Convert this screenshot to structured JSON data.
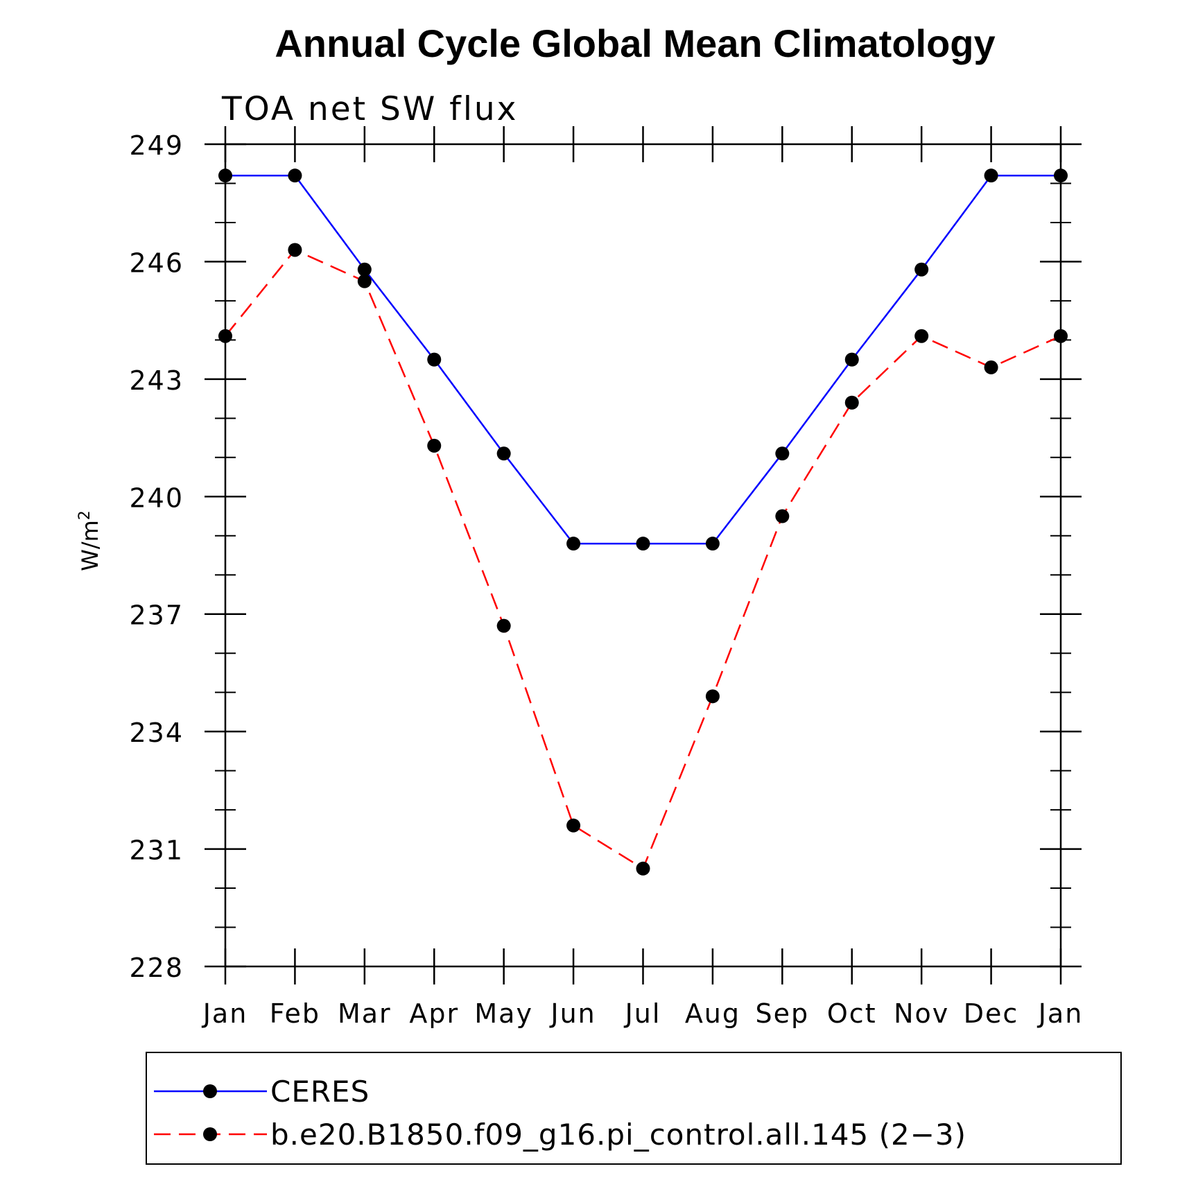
{
  "chart_data": {
    "type": "line",
    "title": "Annual Cycle Global Mean Climatology",
    "subtitle": "TOA net SW flux",
    "ylabel": "W/m",
    "ylabel_superscript": "2",
    "ylim": [
      228,
      249
    ],
    "yticks": [
      "228",
      "231",
      "234",
      "237",
      "240",
      "243",
      "246",
      "249"
    ],
    "categories": [
      "Jan",
      "Feb",
      "Mar",
      "Apr",
      "May",
      "Jun",
      "Jul",
      "Aug",
      "Sep",
      "Oct",
      "Nov",
      "Dec",
      "Jan"
    ],
    "grid": false,
    "legend_position": "bottom",
    "series": [
      {
        "name": "CERES",
        "color": "#0000ff",
        "line_style": "solid",
        "marker": "filled-circle",
        "values": [
          248.2,
          248.2,
          245.8,
          243.5,
          241.1,
          238.8,
          238.8,
          238.8,
          241.1,
          243.5,
          245.8,
          248.2,
          248.2
        ]
      },
      {
        "name": "b.e20.B1850.f09_g16.pi_control.all.145 (2−3)",
        "color": "#ff0000",
        "line_style": "dashed",
        "marker": "filled-circle",
        "values": [
          244.1,
          246.3,
          245.5,
          241.3,
          236.7,
          231.6,
          230.5,
          234.9,
          239.5,
          242.4,
          244.1,
          243.3,
          244.1
        ]
      }
    ]
  }
}
